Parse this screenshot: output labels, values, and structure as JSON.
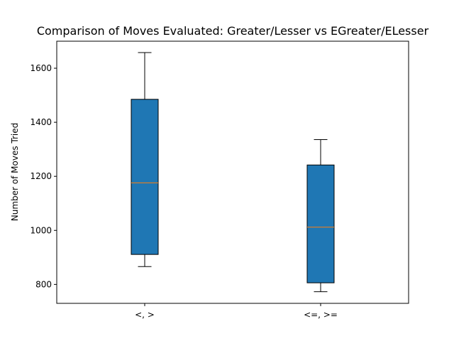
{
  "chart_data": {
    "type": "box",
    "title": "Comparison of Moves Evaluated: Greater/Lesser vs EGreater/ELesser",
    "xlabel": "",
    "ylabel": "Number of Moves Tried",
    "ylim": [
      730,
      1700
    ],
    "yticks": [
      800,
      1000,
      1200,
      1400,
      1600
    ],
    "categories": [
      "<, >",
      "<=, >="
    ],
    "boxes": [
      {
        "whisker_low": 866,
        "q1": 911,
        "median": 1176,
        "q3": 1485,
        "whisker_high": 1658
      },
      {
        "whisker_low": 773,
        "q1": 806,
        "median": 1012,
        "q3": 1242,
        "whisker_high": 1336
      }
    ],
    "grid": false,
    "legend": "none",
    "colors": {
      "box_fill": "#1f77b4",
      "box_edge": "#000000",
      "median": "#ff7f0e",
      "whisker": "#000000"
    }
  }
}
